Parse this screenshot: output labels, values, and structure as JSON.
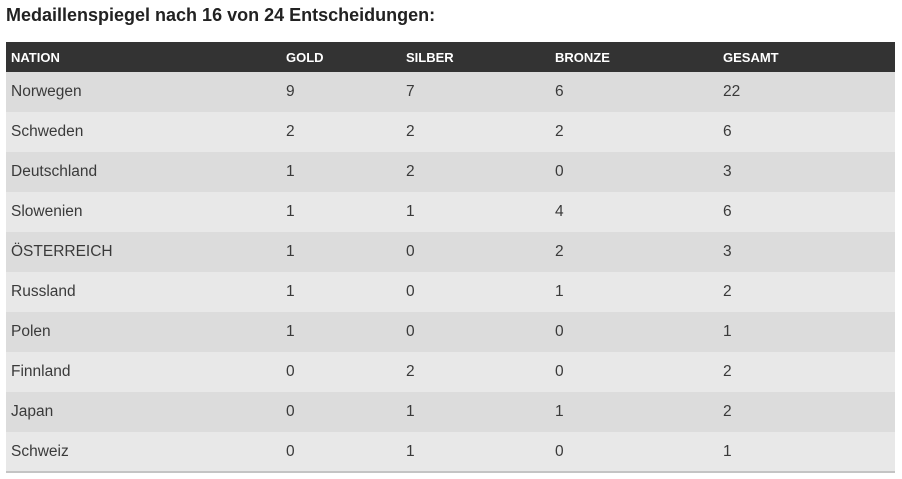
{
  "heading": "Medaillenspiegel nach 16 von 24 Entscheidungen:",
  "table": {
    "columns": [
      "NATION",
      "GOLD",
      "SILBER",
      "BRONZE",
      "GESAMT"
    ],
    "rows": [
      {
        "nation": "Norwegen",
        "gold": "9",
        "silber": "7",
        "bronze": "6",
        "gesamt": "22"
      },
      {
        "nation": "Schweden",
        "gold": "2",
        "silber": "2",
        "bronze": "2",
        "gesamt": "6"
      },
      {
        "nation": "Deutschland",
        "gold": "1",
        "silber": "2",
        "bronze": "0",
        "gesamt": "3"
      },
      {
        "nation": "Slowenien",
        "gold": "1",
        "silber": "1",
        "bronze": "4",
        "gesamt": "6"
      },
      {
        "nation": "ÖSTERREICH",
        "gold": "1",
        "silber": "0",
        "bronze": "2",
        "gesamt": "3"
      },
      {
        "nation": "Russland",
        "gold": "1",
        "silber": "0",
        "bronze": "1",
        "gesamt": "2"
      },
      {
        "nation": "Polen",
        "gold": "1",
        "silber": "0",
        "bronze": "0",
        "gesamt": "1"
      },
      {
        "nation": "Finnland",
        "gold": "0",
        "silber": "2",
        "bronze": "0",
        "gesamt": "2"
      },
      {
        "nation": "Japan",
        "gold": "0",
        "silber": "1",
        "bronze": "1",
        "gesamt": "2"
      },
      {
        "nation": "Schweiz",
        "gold": "0",
        "silber": "1",
        "bronze": "0",
        "gesamt": "1"
      }
    ]
  },
  "colors": {
    "header_background": "#333333",
    "header_text": "#ffffff",
    "row_odd": "#dcdcdc",
    "row_even": "#e8e8e8"
  }
}
